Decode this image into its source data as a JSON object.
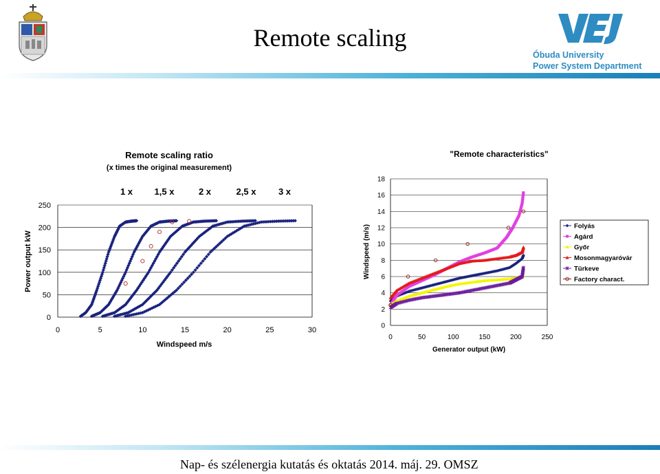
{
  "header": {
    "title": "Remote scaling"
  },
  "logo": {
    "line1": "Óbuda University",
    "line2": "Power System Department"
  },
  "footer": {
    "text": "Nap- és szélenergia kutatás és oktatás 2014. máj. 29. OMSZ"
  },
  "colors": {
    "series_blue": "#1a237e",
    "accent_bar": "#1b7fb8",
    "logo_blue": "#2e8cc2"
  },
  "chart_data": [
    {
      "type": "scatter",
      "title": "Remote scaling ratio",
      "subtitle": "(x times the original measurement)",
      "xlabel": "Windspeed m/s",
      "ylabel": "Power output kW",
      "xlim": [
        0,
        30
      ],
      "ylim": [
        0,
        250
      ],
      "xticks": [
        "0",
        "5",
        "10",
        "15",
        "20",
        "25",
        "30"
      ],
      "yticks": [
        "0",
        "50",
        "100",
        "150",
        "200",
        "250"
      ],
      "ratio_labels": [
        "1 x",
        "1,5 x",
        "2 x",
        "2,5 x",
        "3 x"
      ],
      "series": [
        {
          "name": "1 x",
          "x": [
            2.7,
            3.3,
            4.0,
            4.6,
            5.3,
            6.0,
            6.7,
            7.3,
            8.0,
            8.7,
            9.3
          ],
          "y": [
            2,
            10,
            28,
            60,
            100,
            145,
            180,
            203,
            212,
            214,
            215
          ]
        },
        {
          "name": "1,5 x",
          "x": [
            4.0,
            5.0,
            6.0,
            7.0,
            8.0,
            9.0,
            10.0,
            11.0,
            12.0,
            13.0,
            14.0
          ],
          "y": [
            2,
            10,
            28,
            60,
            100,
            145,
            180,
            203,
            212,
            214,
            215
          ]
        },
        {
          "name": "2 x",
          "x": [
            5.3,
            6.7,
            8.0,
            9.3,
            10.7,
            12.0,
            13.3,
            14.7,
            16.0,
            17.3,
            18.7
          ],
          "y": [
            2,
            10,
            28,
            60,
            100,
            145,
            180,
            203,
            212,
            214,
            215
          ]
        },
        {
          "name": "2,5 x",
          "x": [
            6.7,
            8.3,
            10.0,
            11.7,
            13.3,
            15.0,
            16.7,
            18.3,
            20.0,
            21.7,
            23.3
          ],
          "y": [
            2,
            10,
            28,
            60,
            100,
            145,
            180,
            203,
            212,
            214,
            215
          ]
        },
        {
          "name": "3 x",
          "x": [
            8.0,
            10.0,
            12.0,
            14.0,
            16.0,
            18.0,
            20.0,
            22.0,
            24.0,
            26.0,
            28.0
          ],
          "y": [
            2,
            10,
            28,
            60,
            100,
            145,
            180,
            203,
            212,
            214,
            215
          ]
        }
      ],
      "factory_points": {
        "x": [
          8.0,
          10.0,
          11.0,
          12.0,
          13.5,
          15.5
        ],
        "y": [
          75,
          125,
          158,
          190,
          212,
          214
        ]
      }
    },
    {
      "type": "scatter",
      "title": "\"Remote characteristics\"",
      "xlabel": "Generator output (kW)",
      "ylabel": "Windspeed (m/s)",
      "xlim": [
        0,
        250
      ],
      "ylim": [
        0,
        18
      ],
      "xticks": [
        "0",
        "50",
        "100",
        "150",
        "200",
        "250"
      ],
      "yticks": [
        "0",
        "2",
        "4",
        "6",
        "8",
        "10",
        "12",
        "14",
        "16",
        "18"
      ],
      "legend_position": "right",
      "series": [
        {
          "name": "Folyás",
          "color": "#1a237e",
          "marker": "diamond",
          "x": [
            0,
            10,
            30,
            50,
            70,
            90,
            110,
            130,
            150,
            170,
            190,
            200,
            210,
            212
          ],
          "y": [
            3.0,
            3.6,
            4.2,
            4.6,
            5.0,
            5.4,
            5.8,
            6.1,
            6.4,
            6.7,
            7.1,
            7.6,
            8.2,
            8.6
          ]
        },
        {
          "name": "Agárd",
          "color": "#e040e0",
          "marker": "square",
          "x": [
            0,
            10,
            30,
            50,
            70,
            90,
            110,
            130,
            150,
            170,
            185,
            195,
            205,
            210,
            212
          ],
          "y": [
            2.5,
            3.7,
            4.8,
            5.5,
            6.2,
            7.0,
            7.8,
            8.4,
            8.9,
            9.5,
            10.8,
            12.0,
            13.5,
            15.0,
            16.3
          ]
        },
        {
          "name": "Győr",
          "color": "#f5f500",
          "marker": "triangle",
          "x": [
            0,
            10,
            30,
            50,
            70,
            90,
            110,
            130,
            150,
            170,
            190,
            200,
            212
          ],
          "y": [
            2.5,
            3.0,
            3.6,
            4.0,
            4.4,
            4.8,
            5.1,
            5.3,
            5.5,
            5.6,
            5.7,
            5.8,
            6.1
          ]
        },
        {
          "name": "Mosonmagyaróvár",
          "color": "#e31a1c",
          "marker": "triangle",
          "x": [
            0,
            10,
            30,
            50,
            70,
            90,
            110,
            130,
            150,
            170,
            190,
            200,
            210,
            212
          ],
          "y": [
            3.4,
            4.3,
            5.2,
            5.8,
            6.4,
            7.0,
            7.6,
            7.9,
            8.0,
            8.2,
            8.4,
            8.6,
            9.0,
            9.6
          ]
        },
        {
          "name": "Türkeve",
          "color": "#6a1b9a",
          "marker": "star",
          "x": [
            0,
            10,
            30,
            50,
            70,
            90,
            110,
            130,
            150,
            170,
            190,
            200,
            210,
            212
          ],
          "y": [
            2.2,
            2.7,
            3.1,
            3.4,
            3.6,
            3.8,
            4.0,
            4.3,
            4.6,
            4.9,
            5.2,
            5.6,
            6.0,
            7.1
          ]
        },
        {
          "name": "Factory charact.",
          "color": "#8b1a1a",
          "marker": "circle",
          "x": [
            0,
            28,
            72,
            123,
            188,
            212
          ],
          "y": [
            2.5,
            6.0,
            8.0,
            10.0,
            12.0,
            14.0
          ]
        }
      ]
    }
  ]
}
